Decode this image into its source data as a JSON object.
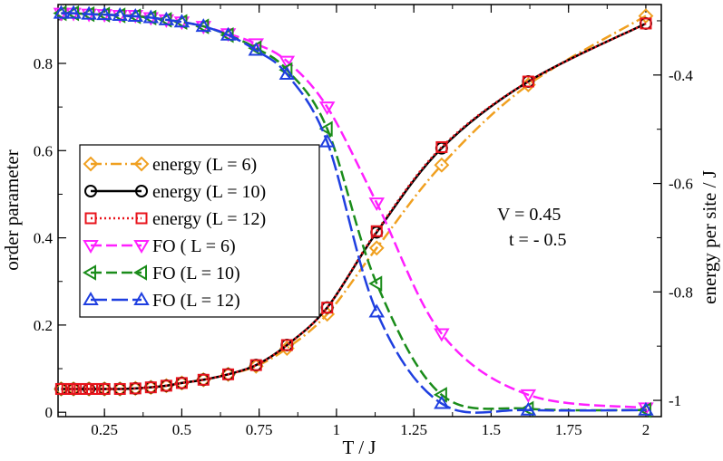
{
  "chart_data": {
    "type": "line",
    "xlabel": "T / J",
    "ylabel_left": "order parameter",
    "ylabel_right": "energy per site / J",
    "xlim": [
      0.1,
      2.05
    ],
    "ylim_left": [
      -0.01,
      0.935
    ],
    "ylim_right": [
      -1.03,
      -0.27
    ],
    "x_ticks": [
      {
        "v": 0.25,
        "label": "0.25"
      },
      {
        "v": 0.5,
        "label": "0.5"
      },
      {
        "v": 0.75,
        "label": "0.75"
      },
      {
        "v": 1.0,
        "label": "1"
      },
      {
        "v": 1.25,
        "label": "1.25"
      },
      {
        "v": 1.5,
        "label": "1.5"
      },
      {
        "v": 1.75,
        "label": "1.75"
      },
      {
        "v": 2.0,
        "label": "2"
      }
    ],
    "y_left_ticks": [
      {
        "v": 0,
        "label": "0"
      },
      {
        "v": 0.2,
        "label": "0.2"
      },
      {
        "v": 0.4,
        "label": "0.4"
      },
      {
        "v": 0.6,
        "label": "0.6"
      },
      {
        "v": 0.8,
        "label": "0.8"
      }
    ],
    "y_right_ticks": [
      {
        "v": -1.0,
        "label": "-1"
      },
      {
        "v": -0.8,
        "label": "-0.8"
      },
      {
        "v": -0.6,
        "label": "-0.6"
      },
      {
        "v": -0.4,
        "label": "-0.4"
      }
    ],
    "legend_position": "left",
    "annotations": [
      "V = 0.45",
      "t = - 0.5"
    ],
    "series": [
      {
        "name": "energy (L = 6)",
        "axis": "right",
        "color": "#f0a020",
        "marker": "diamond",
        "dash": "12,4,2,4",
        "x": [
          0.11,
          0.15,
          0.2,
          0.25,
          0.3,
          0.35,
          0.4,
          0.45,
          0.5,
          0.57,
          0.65,
          0.74,
          0.84,
          0.97,
          1.13,
          1.34,
          1.62,
          2.0
        ],
        "y": [
          -0.979,
          -0.979,
          -0.979,
          -0.979,
          -0.979,
          -0.978,
          -0.976,
          -0.973,
          -0.968,
          -0.962,
          -0.952,
          -0.937,
          -0.904,
          -0.841,
          -0.719,
          -0.566,
          -0.418,
          -0.291
        ]
      },
      {
        "name": "energy (L = 10)",
        "axis": "right",
        "color": "#000000",
        "marker": "circle",
        "dash": "",
        "x": [
          0.11,
          0.15,
          0.2,
          0.25,
          0.3,
          0.35,
          0.4,
          0.45,
          0.5,
          0.57,
          0.65,
          0.74,
          0.84,
          0.97,
          1.13,
          1.34,
          1.62,
          2.0
        ],
        "y": [
          -0.979,
          -0.979,
          -0.979,
          -0.979,
          -0.979,
          -0.978,
          -0.976,
          -0.973,
          -0.968,
          -0.962,
          -0.952,
          -0.935,
          -0.898,
          -0.829,
          -0.69,
          -0.535,
          -0.412,
          -0.305
        ]
      },
      {
        "name": "energy (L = 12)",
        "axis": "right",
        "color": "#e8141c",
        "marker": "square",
        "dash": "2,3",
        "x": [
          0.11,
          0.13,
          0.15,
          0.17,
          0.19,
          0.21,
          0.23,
          0.25,
          0.3,
          0.35,
          0.4,
          0.45,
          0.5,
          0.57,
          0.65,
          0.74,
          0.84,
          0.97,
          1.13,
          1.34,
          1.62,
          2.0
        ],
        "y": [
          -0.979,
          -0.979,
          -0.979,
          -0.979,
          -0.979,
          -0.979,
          -0.979,
          -0.979,
          -0.979,
          -0.978,
          -0.976,
          -0.973,
          -0.968,
          -0.962,
          -0.952,
          -0.935,
          -0.898,
          -0.829,
          -0.688,
          -0.533,
          -0.412,
          -0.305
        ]
      },
      {
        "name": "FO ( L = 6)",
        "axis": "left",
        "color": "#ff20ff",
        "marker": "triangle-down",
        "dash": "12,5",
        "x": [
          0.11,
          0.15,
          0.2,
          0.25,
          0.3,
          0.35,
          0.4,
          0.45,
          0.5,
          0.57,
          0.65,
          0.74,
          0.84,
          0.97,
          1.13,
          1.34,
          1.62,
          2.0
        ],
        "y": [
          0.915,
          0.915,
          0.913,
          0.912,
          0.91,
          0.91,
          0.905,
          0.9,
          0.895,
          0.885,
          0.868,
          0.845,
          0.805,
          0.7,
          0.48,
          0.18,
          0.04,
          0.01
        ]
      },
      {
        "name": "FO (L = 10)",
        "axis": "left",
        "color": "#1a8c1a",
        "marker": "triangle-left",
        "dash": "12,5",
        "x": [
          0.11,
          0.15,
          0.2,
          0.25,
          0.3,
          0.35,
          0.4,
          0.45,
          0.5,
          0.57,
          0.65,
          0.74,
          0.84,
          0.97,
          1.13,
          1.34,
          1.62,
          2.0
        ],
        "y": [
          0.915,
          0.915,
          0.913,
          0.912,
          0.91,
          0.908,
          0.905,
          0.9,
          0.895,
          0.885,
          0.865,
          0.835,
          0.785,
          0.65,
          0.295,
          0.04,
          0.008,
          0.005
        ]
      },
      {
        "name": "FO (L = 12)",
        "axis": "left",
        "color": "#1f3fe0",
        "marker": "triangle-up",
        "dash": "18,5",
        "x": [
          0.11,
          0.15,
          0.2,
          0.25,
          0.3,
          0.35,
          0.4,
          0.45,
          0.5,
          0.57,
          0.65,
          0.74,
          0.84,
          0.97,
          1.13,
          1.34,
          1.62,
          2.0
        ],
        "y": [
          0.915,
          0.915,
          0.913,
          0.912,
          0.91,
          0.908,
          0.905,
          0.9,
          0.895,
          0.885,
          0.865,
          0.83,
          0.775,
          0.62,
          0.23,
          0.02,
          0.005,
          0.005
        ]
      }
    ]
  }
}
